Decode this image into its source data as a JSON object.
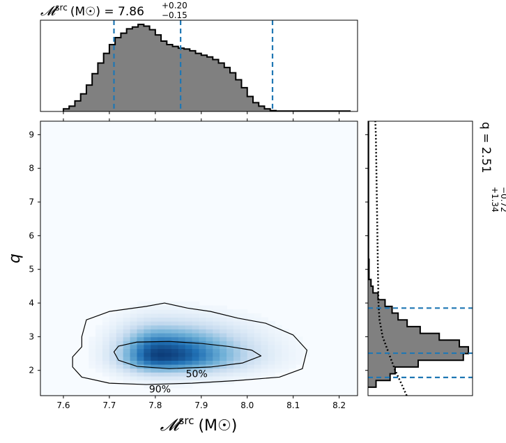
{
  "chart_data": [
    {
      "type": "histogram",
      "panel": "top-marginal",
      "title": "𝓜src (M☉) = 7.86+0.20−0.15",
      "title_parts": {
        "symbol": "𝓜",
        "sup": "src",
        "unit": "(M☉) = 7.86",
        "upper": "+0.20",
        "lower": "−0.15"
      },
      "xlim": [
        7.55,
        8.24
      ],
      "bins": {
        "start": 7.6,
        "width": 0.0125,
        "counts": [
          0.03,
          0.06,
          0.12,
          0.2,
          0.3,
          0.43,
          0.55,
          0.66,
          0.76,
          0.84,
          0.89,
          0.94,
          0.96,
          0.99,
          0.97,
          0.93,
          0.87,
          0.8,
          0.76,
          0.74,
          0.72,
          0.71,
          0.69,
          0.66,
          0.64,
          0.62,
          0.59,
          0.55,
          0.5,
          0.44,
          0.36,
          0.27,
          0.17,
          0.1,
          0.06,
          0.03,
          0.01,
          0.005,
          0.005,
          0.005,
          0.005,
          0.005,
          0.005,
          0.005,
          0.005,
          0.005,
          0.005,
          0.005,
          0.005,
          0.005
        ]
      },
      "quantile_lines": [
        7.71,
        7.855,
        8.055
      ]
    },
    {
      "type": "heatmap",
      "panel": "joint",
      "xlabel": "𝓜src (M☉)",
      "xlabel_parts": {
        "symbol": "𝓜",
        "sup": "src",
        "unit": "(M☉)"
      },
      "ylabel": "q",
      "xlim": [
        7.55,
        8.24
      ],
      "ylim": [
        1.25,
        9.4
      ],
      "xticks": [
        "7.6",
        "7.7",
        "7.8",
        "7.9",
        "8.0",
        "8.1",
        "8.2"
      ],
      "yticks": [
        "2",
        "3",
        "4",
        "5",
        "6",
        "7",
        "8",
        "9"
      ],
      "density_center": [
        7.81,
        2.45
      ],
      "contours": [
        {
          "label": "50%",
          "label_at": [
            7.89,
            1.9
          ],
          "points": [
            [
              7.71,
              2.55
            ],
            [
              7.72,
              2.72
            ],
            [
              7.76,
              2.84
            ],
            [
              7.83,
              2.86
            ],
            [
              7.9,
              2.8
            ],
            [
              7.96,
              2.71
            ],
            [
              8.01,
              2.6
            ],
            [
              8.03,
              2.43
            ],
            [
              7.99,
              2.22
            ],
            [
              7.92,
              2.1
            ],
            [
              7.83,
              2.05
            ],
            [
              7.76,
              2.12
            ],
            [
              7.72,
              2.3
            ]
          ]
        },
        {
          "label": "90%",
          "label_at": [
            7.81,
            1.45
          ],
          "points": [
            [
              7.64,
              2.7
            ],
            [
              7.64,
              3.0
            ],
            [
              7.65,
              3.5
            ],
            [
              7.7,
              3.75
            ],
            [
              7.78,
              3.9
            ],
            [
              7.82,
              4.0
            ],
            [
              7.87,
              3.85
            ],
            [
              7.92,
              3.75
            ],
            [
              7.98,
              3.55
            ],
            [
              8.04,
              3.4
            ],
            [
              8.1,
              3.05
            ],
            [
              8.13,
              2.6
            ],
            [
              8.12,
              2.05
            ],
            [
              8.07,
              1.8
            ],
            [
              7.98,
              1.7
            ],
            [
              7.88,
              1.62
            ],
            [
              7.78,
              1.58
            ],
            [
              7.7,
              1.62
            ],
            [
              7.64,
              1.8
            ],
            [
              7.62,
              2.1
            ],
            [
              7.62,
              2.4
            ]
          ]
        }
      ]
    },
    {
      "type": "histogram",
      "panel": "right-marginal",
      "orientation": "horizontal",
      "title": "q = 2.51+1.34−0.72",
      "title_parts": {
        "main": "q = 2.51",
        "upper": "+1.34",
        "lower": "−0.72"
      },
      "ylim": [
        1.25,
        9.4
      ],
      "bins": {
        "start": 1.5,
        "width": 0.2,
        "counts": [
          0.08,
          0.22,
          0.27,
          0.5,
          0.95,
          1.0,
          0.91,
          0.71,
          0.52,
          0.39,
          0.3,
          0.24,
          0.17,
          0.1,
          0.05,
          0.03,
          0.01,
          0.01,
          0.01,
          0.005,
          0.005,
          0.005,
          0.005,
          0.005,
          0.005,
          0.005,
          0.005,
          0.005,
          0.005,
          0.005,
          0.005,
          0.005,
          0.005,
          0.005,
          0.005,
          0.005,
          0.005,
          0.005,
          0.005,
          0.005
        ]
      },
      "quantile_lines": [
        1.79,
        2.51,
        3.85
      ],
      "prior_curve": [
        [
          0.37,
          1.25
        ],
        [
          0.32,
          1.6
        ],
        [
          0.26,
          2.0
        ],
        [
          0.2,
          2.5
        ],
        [
          0.14,
          3.0
        ],
        [
          0.11,
          3.5
        ],
        [
          0.1,
          4.0
        ],
        [
          0.095,
          5.0
        ],
        [
          0.09,
          6.0
        ],
        [
          0.085,
          7.0
        ],
        [
          0.08,
          8.0
        ],
        [
          0.075,
          9.0
        ],
        [
          0.07,
          9.4
        ]
      ]
    }
  ],
  "colors": {
    "quantile_line": "#1f77b4",
    "hist_fill": "#808080",
    "hist_edge": "#000000",
    "heat_low": "#f7fbff",
    "heat_high": "#08306b"
  }
}
